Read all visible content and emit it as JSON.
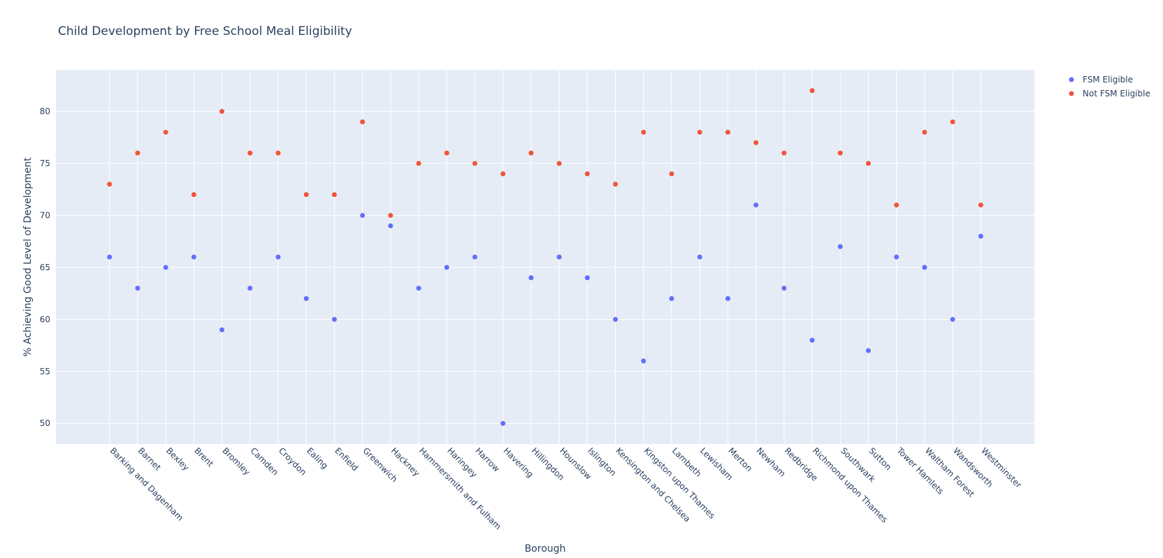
{
  "chart_data": {
    "type": "scatter",
    "title": "Child Development by Free School Meal Eligibility",
    "xlabel": "Borough",
    "ylabel": "% Achieving Good Level of Development",
    "ylim": [
      48,
      84
    ],
    "yticks": [
      50,
      55,
      60,
      65,
      70,
      75,
      80
    ],
    "grid": true,
    "legend_position": "top-right",
    "categories": [
      "Barking and Dagenham",
      "Barnet",
      "Bexley",
      "Brent",
      "Bromley",
      "Camden",
      "Croydon",
      "Ealing",
      "Enfield",
      "Greenwich",
      "Hackney",
      "Hammersmith and Fulham",
      "Haringey",
      "Harrow",
      "Havering",
      "Hillingdon",
      "Hounslow",
      "Islington",
      "Kensington and Chelsea",
      "Kingston upon Thames",
      "Lambeth",
      "Lewisham",
      "Merton",
      "Newham",
      "Redbridge",
      "Richmond upon Thames",
      "Southwark",
      "Sutton",
      "Tower Hamlets",
      "Waltham Forest",
      "Wandsworth",
      "Westminster"
    ],
    "series": [
      {
        "name": "FSM Eligible",
        "color": "#636efa",
        "values": [
          66,
          63,
          65,
          66,
          59,
          63,
          66,
          62,
          60,
          70,
          69,
          63,
          65,
          66,
          50,
          64,
          66,
          64,
          60,
          56,
          62,
          66,
          62,
          71,
          63,
          58,
          67,
          57,
          66,
          65,
          60,
          68
        ]
      },
      {
        "name": "Not FSM Eligible",
        "color": "#ef553b",
        "values": [
          73,
          76,
          78,
          72,
          80,
          76,
          76,
          72,
          72,
          79,
          70,
          75,
          76,
          75,
          74,
          76,
          75,
          74,
          73,
          78,
          74,
          78,
          78,
          77,
          76,
          82,
          76,
          75,
          71,
          78,
          79,
          71
        ]
      }
    ]
  }
}
